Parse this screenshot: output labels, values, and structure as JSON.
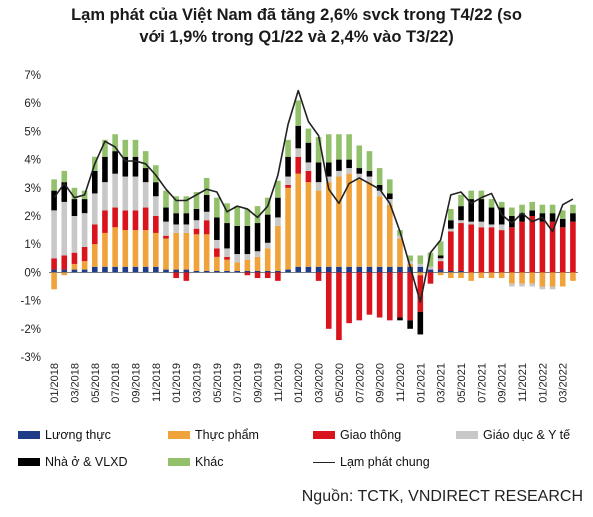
{
  "title": {
    "line1": "Lạm phát của Việt Nam đã tăng 2,6% svck trong T4/22 (so",
    "line2": "với 1,9% trong Q1/22 và 2,4% vào T3/22)"
  },
  "source": "Nguồn: TCTK, VNDIRECT RESEARCH",
  "chart_data": {
    "type": "bar",
    "stacked": true,
    "title": "Lạm phát của Việt Nam đã tăng 2,6% svck trong T4/22 (so với 1,9% trong Q1/22 và 2,4% vào T3/22)",
    "ylim": [
      -3,
      7
    ],
    "yticks": [
      "-3%",
      "-2%",
      "-1%",
      "0%",
      "1%",
      "2%",
      "3%",
      "4%",
      "5%",
      "6%",
      "7%"
    ],
    "grid": false,
    "legend_position": "bottom",
    "categories": [
      "01/2018",
      "02/2018",
      "03/2018",
      "04/2018",
      "05/2018",
      "06/2018",
      "07/2018",
      "08/2018",
      "09/2018",
      "10/2018",
      "11/2018",
      "12/2018",
      "01/2019",
      "02/2019",
      "03/2019",
      "04/2019",
      "05/2019",
      "06/2019",
      "07/2019",
      "08/2019",
      "09/2019",
      "10/2019",
      "11/2019",
      "12/2019",
      "01/2020",
      "02/2020",
      "03/2020",
      "04/2020",
      "05/2020",
      "06/2020",
      "07/2020",
      "08/2020",
      "09/2020",
      "10/2020",
      "11/2020",
      "12/2020",
      "01/2021",
      "02/2021",
      "03/2021",
      "04/2021",
      "05/2021",
      "06/2021",
      "07/2021",
      "08/2021",
      "09/2021",
      "10/2021",
      "11/2021",
      "12/2021",
      "01/2022",
      "02/2022",
      "03/2022",
      "04/2022"
    ],
    "x_tick_labels": [
      "01/2018",
      "03/2018",
      "05/2018",
      "07/2018",
      "09/2018",
      "11/2018",
      "01/2019",
      "03/2019",
      "05/2019",
      "07/2019",
      "09/2019",
      "11/2019",
      "01/2020",
      "03/2020",
      "05/2020",
      "07/2020",
      "09/2020",
      "11/2020",
      "01/2021",
      "03/2021",
      "05/2021",
      "07/2021",
      "09/2021",
      "11/2021",
      "01/2022",
      "03/2022"
    ],
    "series": [
      {
        "name": "Lương thực",
        "kind": "bar",
        "color": "#1f3c88",
        "values": [
          0.1,
          0.1,
          0.1,
          0.1,
          0.2,
          0.2,
          0.2,
          0.2,
          0.2,
          0.2,
          0.2,
          0.1,
          0.1,
          0.1,
          0.05,
          0.05,
          0.05,
          0.05,
          0.05,
          0.05,
          0.05,
          0.05,
          0.05,
          0.1,
          0.2,
          0.2,
          0.2,
          0.2,
          0.2,
          0.2,
          0.2,
          0.2,
          0.2,
          0.2,
          0.2,
          0.2,
          0.2,
          0.1,
          0.1,
          0.05,
          0.05,
          0.0,
          0.0,
          0.0,
          0.0,
          0.0,
          0.0,
          0.0,
          0.0,
          0.0,
          0.0,
          0.0
        ]
      },
      {
        "name": "Thực phẩm",
        "kind": "bar",
        "color": "#f0a33a",
        "values": [
          -0.6,
          -0.1,
          0.2,
          0.3,
          0.8,
          1.2,
          1.4,
          1.3,
          1.3,
          1.3,
          1.2,
          1.1,
          1.3,
          1.3,
          1.3,
          1.3,
          0.5,
          0.4,
          0.3,
          0.4,
          0.5,
          0.8,
          1.6,
          2.9,
          3.3,
          3.0,
          2.7,
          3.0,
          3.2,
          3.3,
          3.1,
          3.0,
          2.5,
          2.2,
          1.0,
          0.1,
          -0.1,
          0.0,
          -0.1,
          -0.2,
          -0.2,
          -0.3,
          -0.2,
          -0.2,
          -0.2,
          -0.4,
          -0.4,
          -0.4,
          -0.5,
          -0.5,
          -0.5,
          -0.3
        ]
      },
      {
        "name": "Giao thông",
        "kind": "bar",
        "color": "#d9141c",
        "values": [
          0.4,
          0.5,
          0.4,
          0.5,
          0.7,
          0.8,
          0.7,
          0.7,
          0.7,
          0.8,
          0.6,
          0.1,
          -0.2,
          -0.3,
          0.2,
          0.5,
          0.3,
          0.1,
          0.0,
          -0.1,
          -0.2,
          -0.2,
          -0.3,
          0.1,
          0.6,
          0.4,
          -0.3,
          -2.0,
          -2.4,
          -1.8,
          -1.7,
          -1.5,
          -1.6,
          -1.7,
          -1.6,
          -1.7,
          -1.3,
          -0.4,
          0.3,
          1.4,
          1.7,
          1.7,
          1.6,
          1.6,
          1.5,
          1.6,
          1.8,
          2.0,
          1.8,
          1.8,
          1.6,
          1.8
        ]
      },
      {
        "name": "Giáo dục & Y tế",
        "kind": "bar",
        "color": "#c8c8c8",
        "values": [
          1.7,
          1.9,
          1.3,
          1.2,
          1.1,
          1.0,
          1.2,
          1.2,
          1.2,
          0.9,
          0.7,
          0.5,
          0.3,
          0.3,
          0.3,
          0.3,
          0.3,
          0.3,
          0.3,
          0.2,
          0.2,
          0.2,
          0.3,
          0.3,
          0.3,
          0.3,
          0.3,
          0.2,
          0.2,
          0.2,
          0.2,
          0.2,
          0.2,
          0.2,
          0.1,
          0.1,
          0.1,
          0.1,
          0.1,
          0.1,
          0.1,
          0.1,
          0.2,
          0.1,
          0.2,
          -0.1,
          -0.1,
          -0.1,
          -0.1,
          -0.1,
          0.0,
          0.0
        ]
      },
      {
        "name": "Nhà ở & VLXD",
        "kind": "bar",
        "color": "#000000",
        "values": [
          0.7,
          0.7,
          0.6,
          0.5,
          0.8,
          0.9,
          0.8,
          0.7,
          0.7,
          0.5,
          0.5,
          0.5,
          0.4,
          0.4,
          0.4,
          0.6,
          0.8,
          0.9,
          1.0,
          1.0,
          1.0,
          1.0,
          0.7,
          0.7,
          0.8,
          0.7,
          0.7,
          0.5,
          0.4,
          0.3,
          0.2,
          0.2,
          0.2,
          0.2,
          -0.1,
          -0.3,
          -0.8,
          0.0,
          0.1,
          0.3,
          0.5,
          0.8,
          0.8,
          0.6,
          0.6,
          0.4,
          0.3,
          0.2,
          0.3,
          0.3,
          0.3,
          0.3
        ]
      },
      {
        "name": "Khác",
        "kind": "bar",
        "color": "#93c06b",
        "values": [
          0.4,
          0.4,
          0.4,
          0.3,
          0.5,
          0.6,
          0.6,
          0.6,
          0.6,
          0.6,
          0.6,
          0.6,
          0.6,
          0.6,
          0.6,
          0.6,
          0.7,
          0.7,
          0.7,
          0.6,
          0.6,
          0.6,
          0.6,
          0.6,
          0.9,
          0.5,
          0.9,
          1.0,
          0.9,
          0.9,
          0.8,
          0.7,
          0.6,
          0.5,
          0.2,
          0.2,
          0.3,
          0.5,
          0.5,
          0.4,
          0.4,
          0.3,
          0.3,
          0.3,
          0.2,
          0.3,
          0.3,
          0.3,
          0.3,
          0.3,
          0.3,
          0.3
        ]
      },
      {
        "name": "Lạm phát chung",
        "kind": "line",
        "color": "#222222",
        "values": [
          2.65,
          3.15,
          2.65,
          2.75,
          3.85,
          4.65,
          4.45,
          3.95,
          3.95,
          3.85,
          3.45,
          2.95,
          2.55,
          2.55,
          2.75,
          2.95,
          2.85,
          2.15,
          2.35,
          2.25,
          1.95,
          2.35,
          3.45,
          5.25,
          6.45,
          5.35,
          4.85,
          2.95,
          2.45,
          3.15,
          3.35,
          3.15,
          2.95,
          2.45,
          1.45,
          0.2,
          -1.05,
          0.7,
          1.15,
          2.75,
          2.85,
          2.45,
          2.65,
          2.8,
          2.05,
          1.75,
          2.1,
          1.8,
          1.95,
          1.45,
          2.4,
          2.6
        ]
      }
    ]
  },
  "legend": [
    {
      "label": "Lương thực",
      "color": "#1f3c88",
      "kind": "bar"
    },
    {
      "label": "Thực phẩm",
      "color": "#f0a33a",
      "kind": "bar"
    },
    {
      "label": "Giao thông",
      "color": "#d9141c",
      "kind": "bar"
    },
    {
      "label": "Giáo dục & Y tế",
      "color": "#c8c8c8",
      "kind": "bar"
    },
    {
      "label": "Nhà ở & VLXD",
      "color": "#000000",
      "kind": "bar"
    },
    {
      "label": "Khác",
      "color": "#93c06b",
      "kind": "bar"
    },
    {
      "label": "Lạm phát chung",
      "color": "#222222",
      "kind": "line"
    }
  ]
}
